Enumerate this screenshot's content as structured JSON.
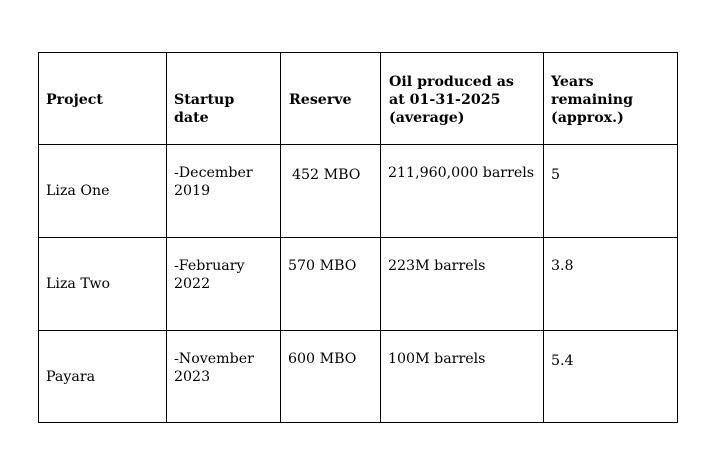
{
  "table": {
    "headers": [
      "Project",
      "Startup\ndate",
      "Reserve",
      "Oil produced as\nat 01-31-2025\n(average)",
      "Years\nremaining\n(approx.)"
    ],
    "rows": [
      [
        "Liza One",
        "-December\n2019",
        "452 MBO",
        "211,960,000 barrels",
        "5"
      ],
      [
        "Liza Two",
        "-February\n2022",
        "570 MBO",
        "223M barrels",
        "3.8"
      ],
      [
        "Payara",
        "-November\n2023",
        "600 MBO",
        "100M barrels",
        "5.4"
      ]
    ]
  }
}
